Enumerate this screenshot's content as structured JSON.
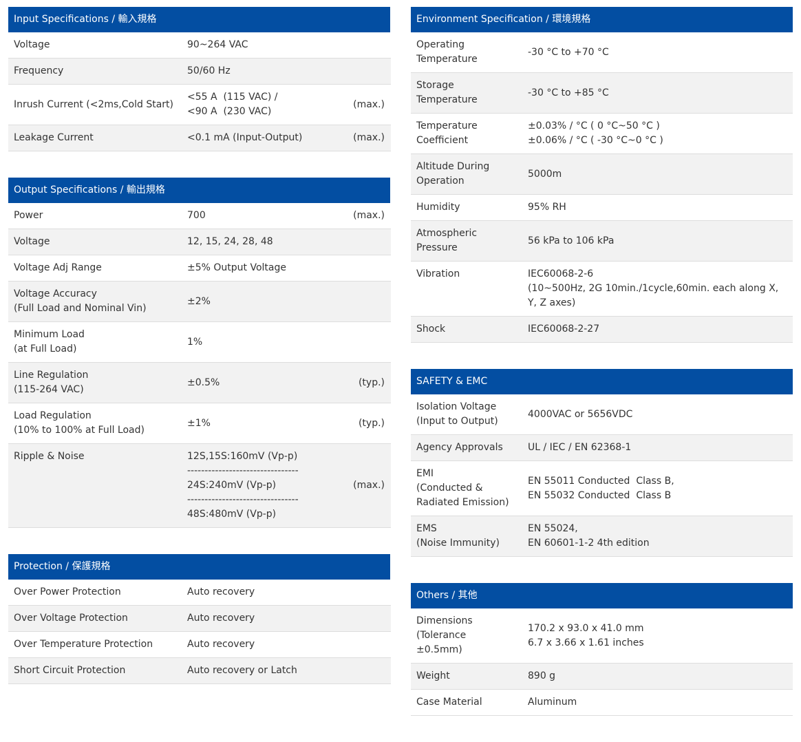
{
  "left": [
    {
      "title": "Input Specifications / 輸入規格",
      "rows": [
        {
          "label": "Voltage",
          "value": [
            "90~264 VAC"
          ],
          "note": ""
        },
        {
          "label": "Frequency",
          "value": [
            "50/60 Hz"
          ],
          "note": ""
        },
        {
          "label": "Inrush Current (<2ms,Cold Start)",
          "value": [
            "<55 A  (115 VAC) /",
            "<90 A  (230 VAC)"
          ],
          "note": "(max.)"
        },
        {
          "label": "Leakage Current",
          "value": [
            "<0.1 mA (Input-Output)"
          ],
          "note": "(max.)"
        }
      ]
    },
    {
      "title": "Output Specifications / 輸出規格",
      "rows": [
        {
          "label": "Power",
          "value": [
            "700"
          ],
          "note": "(max.)"
        },
        {
          "label": "Voltage",
          "value": [
            "12, 15, 24, 28, 48"
          ],
          "note": ""
        },
        {
          "label": "Voltage Adj Range",
          "value": [
            "±5% Output Voltage"
          ],
          "note": ""
        },
        {
          "label": "Voltage Accuracy\n(Full Load and Nominal Vin)",
          "value": [
            "±2%"
          ],
          "note": ""
        },
        {
          "label": "Minimum Load\n(at Full Load)",
          "value": [
            "1%"
          ],
          "note": ""
        },
        {
          "label": "Line Regulation\n(115-264 VAC)",
          "value": [
            "±0.5%"
          ],
          "note": "(typ.)"
        },
        {
          "label": "Load Regulation\n(10% to 100% at Full Load)",
          "value": [
            "±1%"
          ],
          "note": "(typ.)"
        },
        {
          "label": "Ripple & Noise",
          "value": [
            "12S,15S:160mV (Vp-p)",
            "--------------------------------",
            "24S:240mV (Vp-p)",
            "--------------------------------",
            "48S:480mV (Vp-p)"
          ],
          "note": "(max.)",
          "top": true
        }
      ]
    },
    {
      "title": "Protection / 保護規格",
      "rows": [
        {
          "label": "Over Power Protection",
          "value": [
            "Auto recovery"
          ],
          "note": ""
        },
        {
          "label": "Over Voltage Protection",
          "value": [
            "Auto recovery"
          ],
          "note": ""
        },
        {
          "label": "Over Temperature Protection",
          "value": [
            "Auto recovery"
          ],
          "note": ""
        },
        {
          "label": "Short Circuit Protection",
          "value": [
            "Auto recovery or Latch"
          ],
          "note": ""
        }
      ]
    }
  ],
  "right": [
    {
      "title": "Environment Specification / 環境規格",
      "rows": [
        {
          "label": "Operating\nTemperature",
          "value": [
            "-30 °C to +70 °C"
          ]
        },
        {
          "label": "Storage\nTemperature",
          "value": [
            "-30 °C to +85 °C"
          ]
        },
        {
          "label": "Temperature\nCoefficient",
          "value": [
            "±0.03% / °C ( 0 °C~50 °C )",
            "±0.06% / °C ( -30 °C~0 °C )"
          ]
        },
        {
          "label": "Altitude During\nOperation",
          "value": [
            "5000m"
          ]
        },
        {
          "label": "Humidity",
          "value": [
            "95% RH"
          ]
        },
        {
          "label": "Atmospheric\nPressure",
          "value": [
            "56 kPa to 106 kPa"
          ]
        },
        {
          "label": "Vibration",
          "value": [
            "IEC60068-2-6",
            "(10~500Hz, 2G 10min./1cycle,60min. each along X,",
            "Y, Z axes)"
          ],
          "top": true
        },
        {
          "label": "Shock",
          "value": [
            "IEC60068-2-27"
          ]
        }
      ]
    },
    {
      "title": "SAFETY & EMC",
      "rows": [
        {
          "label": "Isolation Voltage\n(Input to Output)",
          "value": [
            "4000VAC or 5656VDC"
          ]
        },
        {
          "label": "Agency Approvals",
          "value": [
            "UL / IEC / EN 62368-1"
          ]
        },
        {
          "label": "EMI\n(Conducted &\nRadiated Emission)",
          "value": [
            "EN 55011 Conducted  Class B,",
            "EN 55032 Conducted  Class B"
          ]
        },
        {
          "label": "EMS\n(Noise Immunity)",
          "value": [
            "EN 55024,",
            "EN 60601-1-2 4th edition"
          ]
        }
      ]
    },
    {
      "title": "Others / 其他",
      "rows": [
        {
          "label": "Dimensions\n(Tolerance\n±0.5mm)",
          "value": [
            "170.2 x 93.0 x 41.0 mm",
            "6.7 x 3.66 x 1.61 inches"
          ]
        },
        {
          "label": "Weight",
          "value": [
            "890 g"
          ]
        },
        {
          "label": "Case Material",
          "value": [
            "Aluminum"
          ]
        }
      ]
    }
  ]
}
